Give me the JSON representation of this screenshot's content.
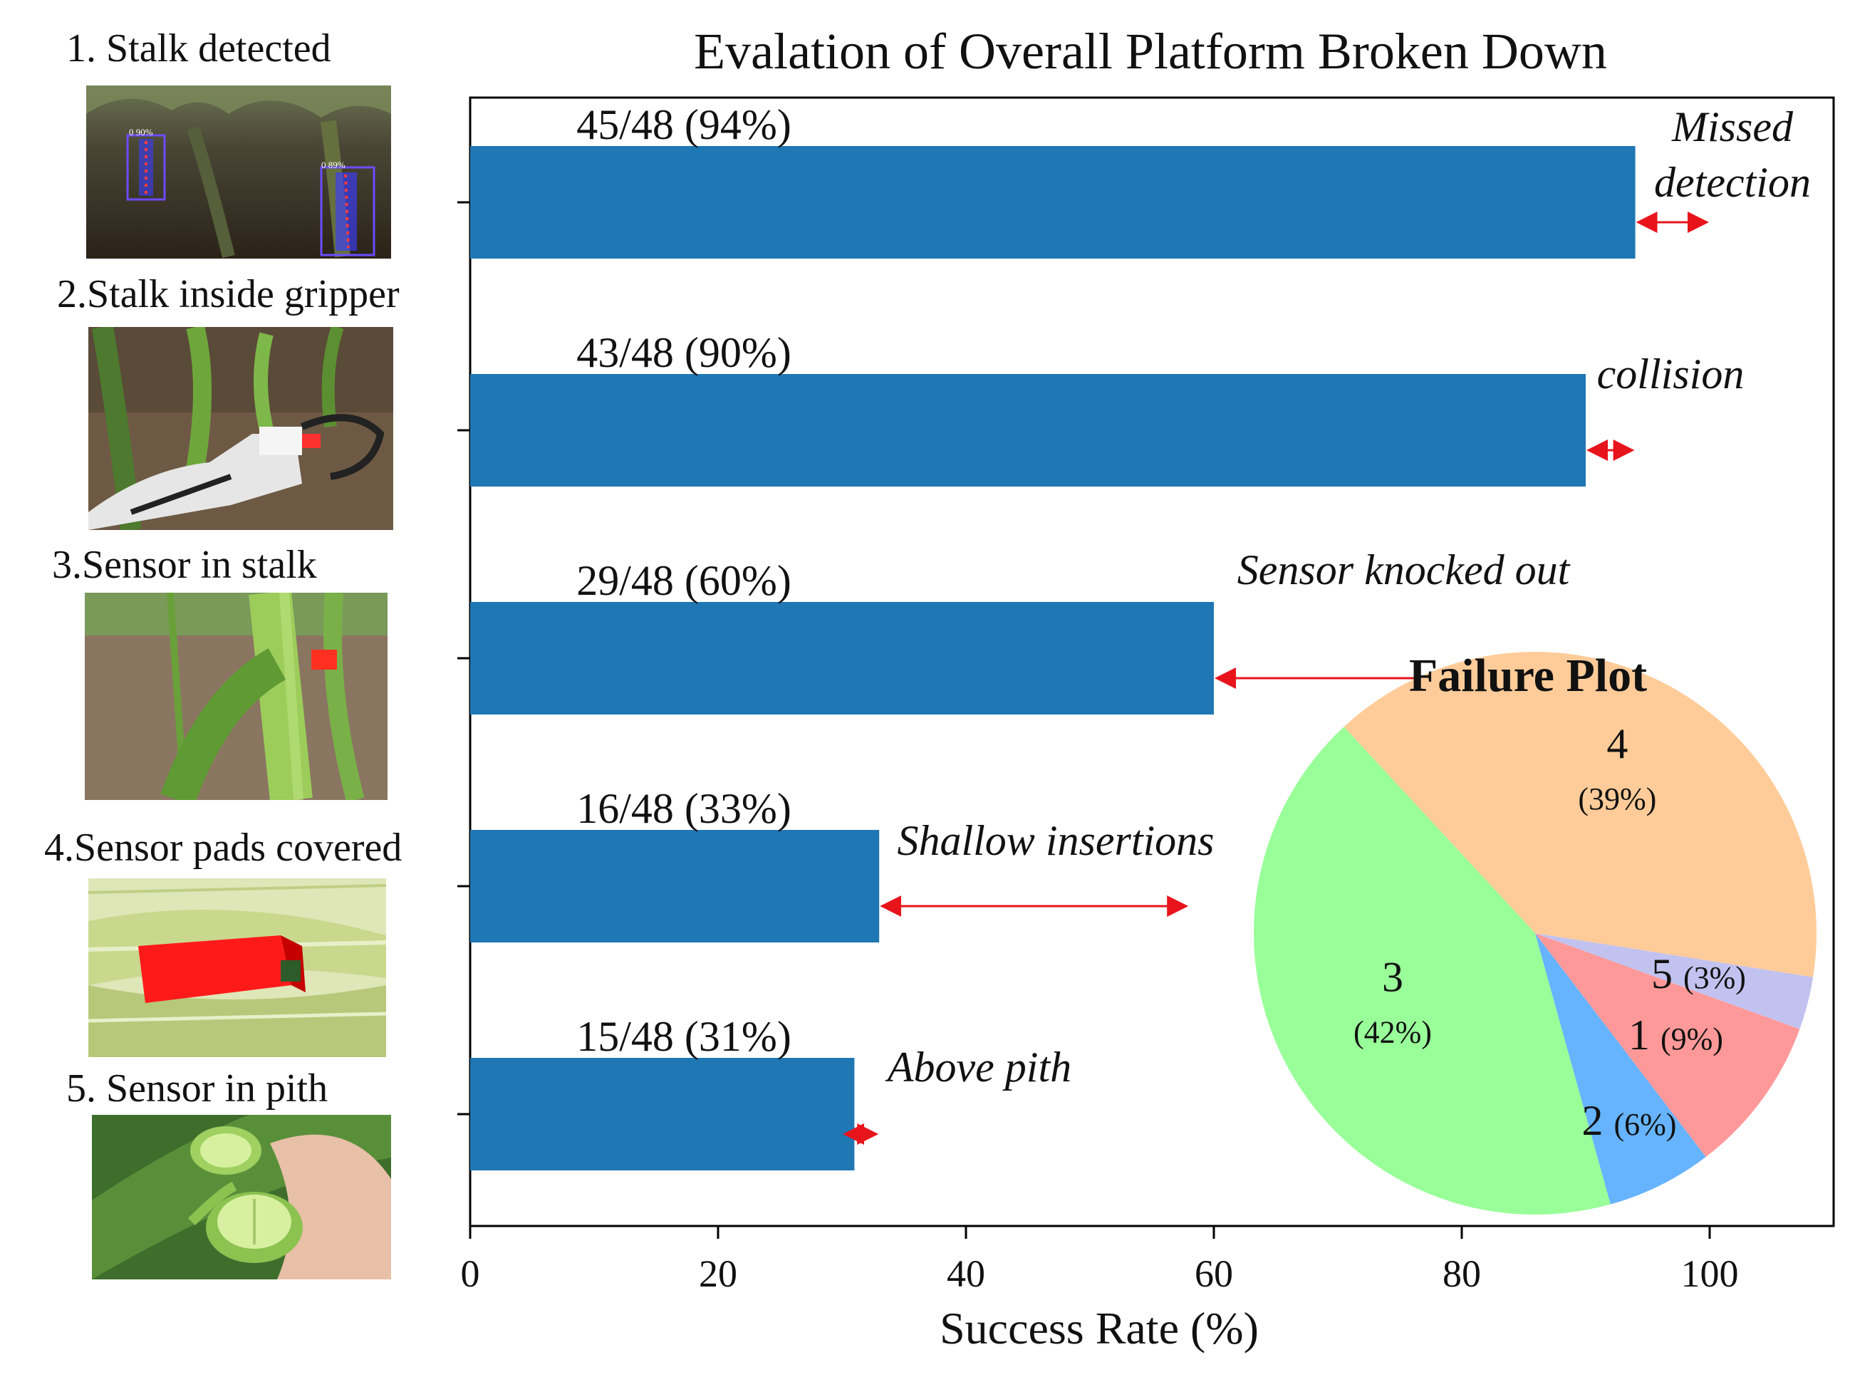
{
  "steps": [
    {
      "label": "1. Stalk detected",
      "photo": "stalk-detection-photo",
      "photo_text": [
        "0 90%",
        "0 89%"
      ]
    },
    {
      "label": "2.Stalk inside gripper",
      "photo": "gripper-photo"
    },
    {
      "label": "3.Sensor in stalk",
      "photo": "sensor-stalk-photo"
    },
    {
      "label": "4.Sensor pads covered",
      "photo": "sensor-pads-photo"
    },
    {
      "label": "5. Sensor in pith",
      "photo": "pith-photo"
    }
  ],
  "chart_data": [
    {
      "type": "bar",
      "orientation": "horizontal",
      "title": "Evalation of Overall Platform Broken Down",
      "xlabel": "Success Rate (%)",
      "ylabel": "",
      "xlim": [
        0,
        110
      ],
      "xticks": [
        0,
        20,
        40,
        60,
        80,
        100
      ],
      "values": [
        94,
        90,
        60,
        33,
        31
      ],
      "bar_labels": [
        "45/48 (94%)",
        "43/48 (90%)",
        "29/48 (60%)",
        "16/48 (33%)",
        "15/48 (31%)"
      ],
      "bar_color": "#1f77b4",
      "gaps": [
        {
          "label": "Missed detection",
          "label_lines": [
            "Missed",
            "detection"
          ],
          "from": 94,
          "to": 100
        },
        {
          "label": "collision",
          "label_lines": [
            "collision"
          ],
          "from": 90,
          "to": 94
        },
        {
          "label": "Sensor knocked out",
          "label_lines": [
            "Sensor knocked out"
          ],
          "from": 60,
          "to": 89
        },
        {
          "label": "Shallow insertions",
          "label_lines": [
            "Shallow insertions"
          ],
          "from": 33,
          "to": 58
        },
        {
          "label": "Above pith",
          "label_lines": [
            "Above pith"
          ],
          "from": 30,
          "to": 33
        }
      ],
      "arrow_color": "#e8141c",
      "grid": false
    },
    {
      "type": "pie",
      "title": "Failure Plot",
      "slices": [
        {
          "name": "4",
          "pct_label": "(39%)",
          "value": 39,
          "color": "#ffcc99"
        },
        {
          "name": "3",
          "pct_label": "(42%)",
          "value": 42,
          "color": "#99ff99"
        },
        {
          "name": "2",
          "pct_label": "(6%)",
          "value": 6,
          "color": "#66b3ff"
        },
        {
          "name": "1",
          "pct_label": "(9%)",
          "value": 9,
          "color": "#ff9999"
        },
        {
          "name": "5",
          "pct_label": "(3%)",
          "value": 3,
          "color": "#c2c2f0"
        }
      ]
    }
  ]
}
